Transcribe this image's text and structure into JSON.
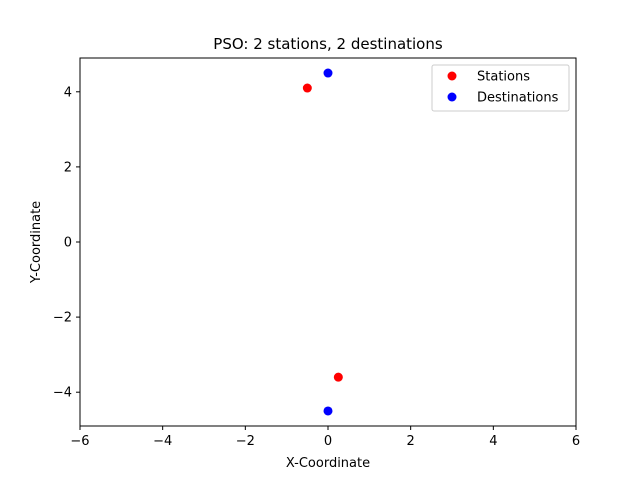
{
  "chart_data": {
    "type": "scatter",
    "title": "PSO: 2 stations, 2 destinations",
    "xlabel": "X-Coordinate",
    "ylabel": "Y-Coordinate",
    "xlim": [
      -6,
      6
    ],
    "ylim": [
      -4.9,
      4.9
    ],
    "x_ticks": [
      -6,
      -4,
      -2,
      0,
      2,
      4,
      6
    ],
    "y_ticks": [
      -4,
      -2,
      0,
      2,
      4
    ],
    "grid": false,
    "legend_position": "top-right",
    "series": [
      {
        "name": "Stations",
        "color": "#ff0000",
        "points": [
          {
            "x": -0.5,
            "y": 4.1
          },
          {
            "x": 0.25,
            "y": -3.6
          }
        ]
      },
      {
        "name": "Destinations",
        "color": "#0000ff",
        "points": [
          {
            "x": 0.0,
            "y": 4.5
          },
          {
            "x": 0.0,
            "y": -4.5
          }
        ]
      }
    ]
  }
}
